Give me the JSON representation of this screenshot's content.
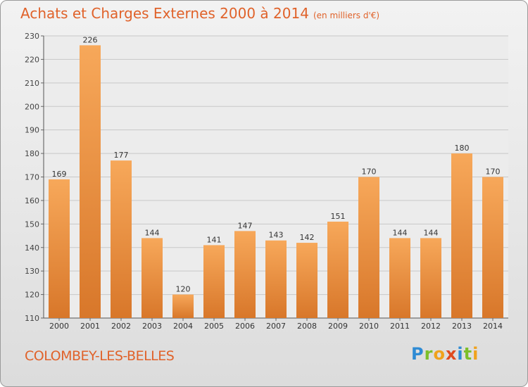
{
  "title": "Achats et Charges Externes 2000 à 2014",
  "subtitle": "(en milliers d'€)",
  "commune": "COLOMBEY-LES-BELLES",
  "logo_text": "Proxiti",
  "colors": {
    "accent": "#e0622a",
    "bar_light": "#f7a85a",
    "bar_dark": "#d8772a"
  },
  "chart_data": {
    "type": "bar",
    "categories": [
      "2000",
      "2001",
      "2002",
      "2003",
      "2004",
      "2005",
      "2006",
      "2007",
      "2008",
      "2009",
      "2010",
      "2011",
      "2012",
      "2013",
      "2014"
    ],
    "values": [
      169,
      226,
      177,
      144,
      120,
      141,
      147,
      143,
      142,
      151,
      170,
      144,
      144,
      180,
      170
    ],
    "ylim": [
      110,
      230
    ],
    "yticks": [
      110,
      120,
      130,
      140,
      150,
      160,
      170,
      180,
      190,
      200,
      210,
      220,
      230
    ],
    "grid": true,
    "title": "Achats et Charges Externes 2000 à 2014",
    "xlabel": "",
    "ylabel": ""
  }
}
